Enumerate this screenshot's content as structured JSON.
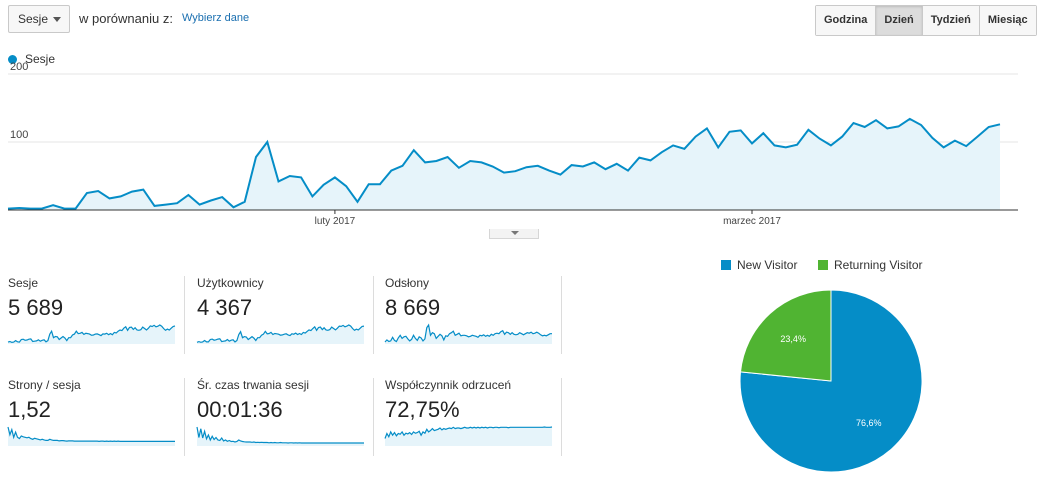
{
  "toolbar": {
    "metric_select": "Sesje",
    "compare_label": "w porównaniu z:",
    "compare_link": "Wybierz dane",
    "granularity": [
      {
        "label": "Godzina",
        "active": false
      },
      {
        "label": "Dzień",
        "active": true
      },
      {
        "label": "Tydzień",
        "active": false
      },
      {
        "label": "Miesiąc",
        "active": false
      }
    ]
  },
  "colors": {
    "series": "#058dc7",
    "area": "#e6f4fa",
    "new_visitor": "#058dc7",
    "returning_visitor": "#50b432"
  },
  "chart_data": [
    {
      "type": "area",
      "series": [
        {
          "name": "Sesje",
          "values": [
            2,
            3,
            2,
            2,
            7,
            2,
            2,
            25,
            28,
            17,
            20,
            27,
            30,
            6,
            8,
            10,
            22,
            8,
            14,
            19,
            4,
            12,
            78,
            100,
            42,
            50,
            48,
            20,
            37,
            48,
            35,
            12,
            38,
            38,
            58,
            65,
            88,
            70,
            72,
            78,
            62,
            72,
            70,
            64,
            55,
            57,
            63,
            65,
            58,
            52,
            66,
            64,
            70,
            60,
            68,
            58,
            77,
            73,
            85,
            95,
            90,
            108,
            120,
            92,
            115,
            117,
            98,
            113,
            95,
            92,
            96,
            118,
            105,
            95,
            108,
            128,
            122,
            132,
            120,
            123,
            134,
            125,
            106,
            92,
            102,
            94,
            108,
            122,
            126
          ]
        }
      ],
      "y_ticks": [
        "200",
        "100"
      ],
      "x_labels": [
        "luty 2017",
        "marzec 2017"
      ],
      "ylim": [
        0,
        200
      ]
    },
    {
      "type": "pie",
      "series": [
        {
          "name": "New Visitor",
          "value": 76.6,
          "label": "76,6%"
        },
        {
          "name": "Returning Visitor",
          "value": 23.4,
          "label": "23,4%"
        }
      ]
    }
  ],
  "metrics": [
    {
      "label": "Sesje",
      "value": "5 689",
      "spark": [
        3,
        5,
        2,
        3,
        8,
        4,
        3,
        12,
        13,
        9,
        10,
        13,
        14,
        5,
        6,
        7,
        11,
        6,
        9,
        11,
        4,
        8,
        30,
        40,
        18,
        22,
        21,
        12,
        17,
        22,
        17,
        8,
        18,
        18,
        27,
        30,
        40,
        32,
        33,
        36,
        29,
        33,
        32,
        30,
        26,
        27,
        30,
        31,
        28,
        25,
        31,
        30,
        33,
        28,
        32,
        28,
        36,
        34,
        40,
        44,
        42,
        50,
        55,
        43,
        53,
        54,
        46,
        52,
        44,
        43,
        45,
        54,
        49,
        44,
        50,
        58,
        56,
        60,
        55,
        57,
        61,
        57,
        49,
        43,
        47,
        44,
        50,
        56,
        58
      ]
    },
    {
      "label": "Użytkownicy",
      "value": "4 367",
      "spark": [
        2,
        4,
        2,
        3,
        7,
        3,
        3,
        10,
        11,
        8,
        9,
        11,
        12,
        4,
        5,
        6,
        10,
        5,
        8,
        9,
        3,
        7,
        24,
        32,
        15,
        18,
        17,
        10,
        14,
        18,
        14,
        7,
        15,
        15,
        22,
        25,
        33,
        26,
        27,
        30,
        24,
        27,
        26,
        25,
        22,
        23,
        25,
        26,
        23,
        21,
        26,
        25,
        28,
        24,
        27,
        24,
        30,
        28,
        33,
        37,
        35,
        41,
        46,
        36,
        44,
        45,
        38,
        43,
        37,
        36,
        38,
        45,
        41,
        37,
        42,
        48,
        47,
        50,
        46,
        48,
        51,
        48,
        41,
        36,
        39,
        37,
        42,
        47,
        48
      ]
    },
    {
      "label": "Odsłony",
      "value": "8 669",
      "spark": [
        4,
        12,
        6,
        8,
        22,
        10,
        6,
        20,
        30,
        18,
        24,
        26,
        16,
        8,
        14,
        30,
        18,
        10,
        24,
        20,
        8,
        16,
        60,
        70,
        30,
        40,
        36,
        18,
        26,
        34,
        28,
        12,
        28,
        26,
        36,
        40,
        46,
        30,
        34,
        38,
        28,
        30,
        30,
        28,
        24,
        26,
        30,
        28,
        26,
        22,
        30,
        28,
        32,
        26,
        30,
        26,
        34,
        30,
        36,
        38,
        36,
        44,
        48,
        34,
        42,
        40,
        34,
        40,
        34,
        32,
        34,
        40,
        36,
        32,
        36,
        40,
        38,
        42,
        36,
        38,
        42,
        38,
        32,
        28,
        30,
        28,
        32,
        36,
        36
      ]
    },
    {
      "label": "Strony / sesja",
      "value": "1,52",
      "spark": [
        70,
        40,
        60,
        30,
        50,
        30,
        25,
        35,
        32,
        30,
        28,
        30,
        25,
        22,
        26,
        24,
        22,
        20,
        22,
        20,
        18,
        18,
        22,
        20,
        18,
        18,
        18,
        16,
        17,
        17,
        16,
        15,
        16,
        16,
        16,
        15,
        15,
        15,
        15,
        15,
        15,
        15,
        15,
        15,
        15,
        15,
        15,
        15,
        14,
        15,
        15,
        14,
        15,
        14,
        15,
        14,
        15,
        14,
        15,
        14,
        14,
        14,
        14,
        14,
        14,
        14,
        14,
        14,
        14,
        14,
        14,
        14,
        14,
        14,
        14,
        14,
        14,
        14,
        14,
        14,
        14,
        14,
        14,
        14,
        14,
        14,
        14,
        14,
        14
      ]
    },
    {
      "label": "Śr. czas trwania sesji",
      "value": "00:01:36",
      "spark": [
        72,
        30,
        65,
        28,
        55,
        25,
        40,
        20,
        35,
        22,
        30,
        20,
        18,
        28,
        16,
        20,
        15,
        18,
        14,
        15,
        12,
        14,
        20,
        16,
        14,
        13,
        12,
        12,
        12,
        11,
        12,
        10,
        11,
        10,
        11,
        10,
        10,
        10,
        9,
        10,
        9,
        10,
        9,
        9,
        10,
        9,
        9,
        9,
        8,
        9,
        9,
        8,
        9,
        8,
        9,
        8,
        8,
        8,
        8,
        8,
        8,
        8,
        8,
        8,
        8,
        8,
        8,
        8,
        8,
        8,
        8,
        8,
        8,
        8,
        8,
        8,
        8,
        8,
        8,
        8,
        8,
        8,
        8,
        8,
        8,
        8,
        8,
        8,
        8
      ]
    },
    {
      "label": "Współczynnik odrzuceń",
      "value": "72,75%",
      "spark": [
        20,
        35,
        25,
        40,
        30,
        38,
        28,
        35,
        33,
        40,
        30,
        36,
        34,
        38,
        32,
        40,
        36,
        38,
        42,
        30,
        40,
        36,
        48,
        40,
        44,
        50,
        44,
        46,
        48,
        52,
        46,
        50,
        48,
        50,
        52,
        50,
        54,
        50,
        52,
        52,
        50,
        52,
        54,
        52,
        52,
        54,
        52,
        54,
        52,
        54,
        52,
        54,
        53,
        54,
        52,
        54,
        54,
        53,
        54,
        54,
        53,
        54,
        54,
        54,
        54,
        53,
        54,
        54,
        54,
        54,
        54,
        54,
        54,
        54,
        54,
        54,
        54,
        54,
        54,
        54,
        54,
        54,
        54,
        54,
        55,
        54,
        54,
        54,
        55
      ]
    }
  ]
}
